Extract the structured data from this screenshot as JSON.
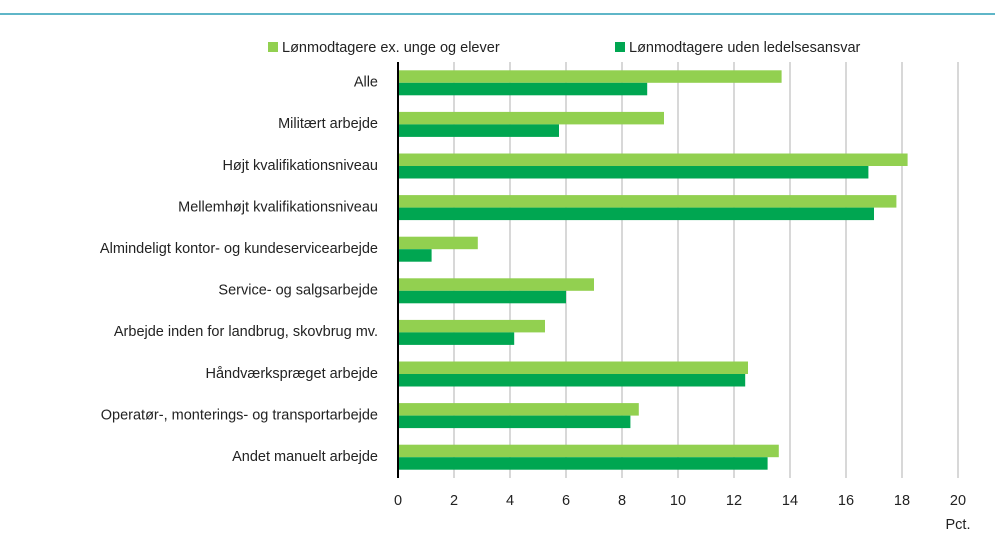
{
  "chart_data": {
    "type": "hbar",
    "x_label": "Pct.",
    "categories": [
      "Alle",
      "Militært arbejde",
      "Højt kvalifikationsniveau",
      "Mellemhøjt kvalifikationsniveau",
      "Almindeligt kontor- og kundeservicearbejde",
      "Service- og salgsarbejde",
      "Arbejde inden for landbrug, skovbrug mv.",
      "Håndværkspræget arbejde",
      "Operatør-, monterings- og transportarbejde",
      "Andet manuelt arbejde"
    ],
    "series": [
      {
        "name": "Lønmodtagere ex. unge og elever",
        "color": "#92d050",
        "values": [
          13.7,
          9.5,
          18.2,
          17.8,
          2.85,
          7.0,
          5.25,
          12.5,
          8.6,
          13.6
        ]
      },
      {
        "name": "Lønmodtagere uden ledelsesansvar",
        "color": "#00a651",
        "values": [
          8.9,
          5.75,
          16.8,
          17.0,
          1.2,
          6.0,
          4.15,
          12.4,
          8.3,
          13.2
        ]
      }
    ],
    "xlim": [
      0,
      20
    ],
    "xticks": [
      0,
      2,
      4,
      6,
      8,
      10,
      12,
      14,
      16,
      18,
      20
    ],
    "grid": true
  }
}
